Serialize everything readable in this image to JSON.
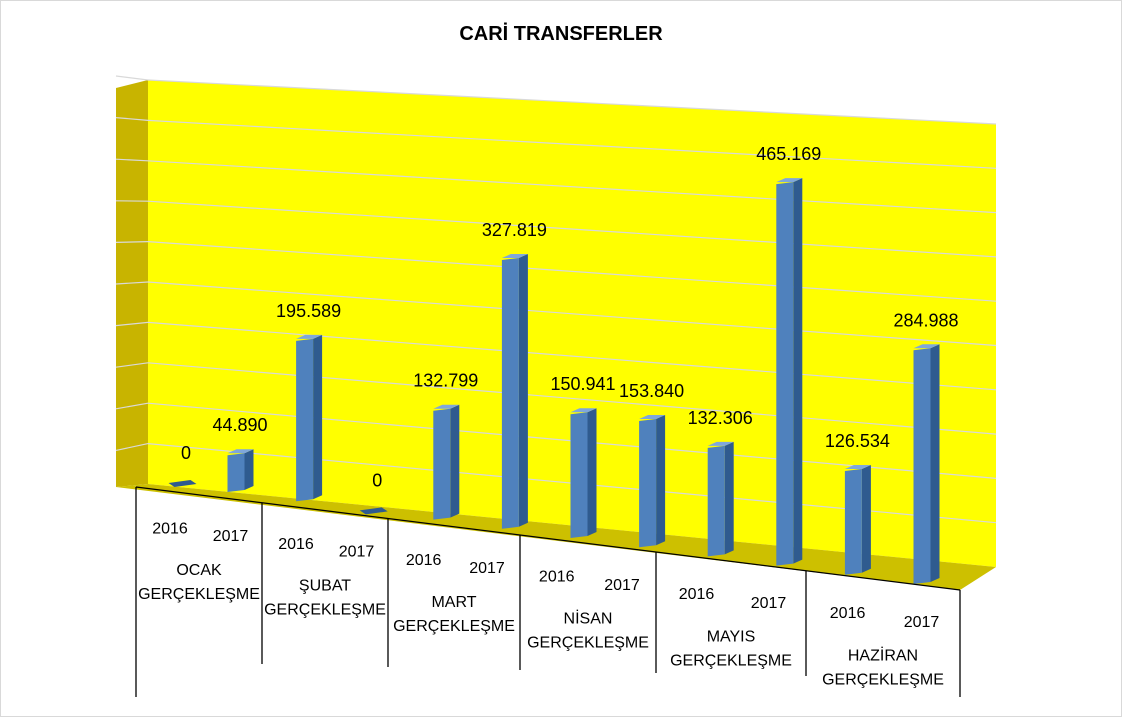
{
  "chart_data": {
    "type": "bar",
    "title": "CARİ TRANSFERLER",
    "groups": [
      {
        "label": [
          "OCAK",
          "GERÇEKLEŞME"
        ],
        "years": [
          "2016",
          "2017"
        ],
        "values": [
          0,
          44890
        ],
        "labels": [
          "0",
          "44.890"
        ]
      },
      {
        "label": [
          "ŞUBAT",
          "GERÇEKLEŞME"
        ],
        "years": [
          "2016",
          "2017"
        ],
        "values": [
          195589,
          0
        ],
        "labels": [
          "195.589",
          "0"
        ]
      },
      {
        "label": [
          "MART",
          "GERÇEKLEŞME"
        ],
        "years": [
          "2016",
          "2017"
        ],
        "values": [
          132799,
          327819
        ],
        "labels": [
          "132.799",
          "327.819"
        ]
      },
      {
        "label": [
          "NİSAN",
          "GERÇEKLEŞME"
        ],
        "years": [
          "2016",
          "2017"
        ],
        "values": [
          150941,
          153840
        ],
        "labels": [
          "150.941",
          "153.840"
        ]
      },
      {
        "label": [
          "MAYIS",
          "GERÇEKLEŞME"
        ],
        "years": [
          "2016",
          "2017"
        ],
        "values": [
          132306,
          465169
        ],
        "labels": [
          "132.306",
          "465.169"
        ]
      },
      {
        "label": [
          "HAZİRAN",
          "GERÇEKLEŞME"
        ],
        "years": [
          "2016",
          "2017"
        ],
        "values": [
          126534,
          284988
        ],
        "labels": [
          "126.534",
          "284.988"
        ]
      }
    ],
    "ylim": [
      0,
      500000
    ],
    "grid": true,
    "colors": {
      "bar": "#4f81bd",
      "bar_top": "#7fa7db",
      "bar_side": "#2f5b8f",
      "wall": "#ffff00",
      "wall_side": "#c8b400",
      "floor": "#cdc000",
      "gridline": "#d9d9d9"
    }
  }
}
